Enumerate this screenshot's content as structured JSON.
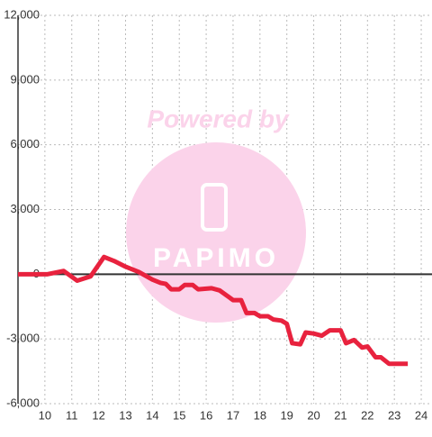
{
  "chart_data": {
    "type": "line",
    "watermark": "Powered by",
    "x": [
      9.0,
      10.1,
      10.7,
      11.2,
      11.7,
      12.2,
      12.6,
      13.0,
      13.5,
      14.0,
      14.3,
      14.5,
      14.7,
      15.0,
      15.2,
      15.5,
      15.7,
      16.2,
      16.5,
      17.0,
      17.3,
      17.5,
      17.8,
      18.0,
      18.3,
      18.5,
      18.8,
      19.0,
      19.2,
      19.5,
      19.7,
      20.0,
      20.3,
      20.6,
      21.0,
      21.2,
      21.5,
      21.8,
      22.0,
      22.3,
      22.5,
      22.8,
      23.0,
      23.5
    ],
    "values": [
      0,
      0,
      150,
      -300,
      -100,
      800,
      600,
      350,
      100,
      -250,
      -400,
      -450,
      -700,
      -700,
      -500,
      -500,
      -700,
      -650,
      -750,
      -1200,
      -1200,
      -1800,
      -1800,
      -1950,
      -1950,
      -2100,
      -2150,
      -2300,
      -3200,
      -3250,
      -2700,
      -2750,
      -2850,
      -2600,
      -2600,
      -3200,
      -3050,
      -3400,
      -3350,
      -3850,
      -3850,
      -4150,
      -4150,
      -4150
    ],
    "color": "#e8223e",
    "xlim": [
      9,
      24.4
    ],
    "xticks": [
      10,
      11,
      12,
      13,
      14,
      15,
      16,
      17,
      18,
      19,
      20,
      21,
      22,
      23,
      24
    ],
    "ylim": [
      -6000,
      12000
    ],
    "yticks": [
      {
        "value": -6000,
        "label": "-6,000"
      },
      {
        "value": -3000,
        "label": "-3,000"
      },
      0,
      {
        "value": 3000,
        "label": "3,000"
      },
      {
        "value": 6000,
        "label": "6,000"
      },
      {
        "value": 9000,
        "label": "9,000"
      },
      {
        "value": 12000,
        "label": "12,000"
      }
    ],
    "grid": true
  }
}
